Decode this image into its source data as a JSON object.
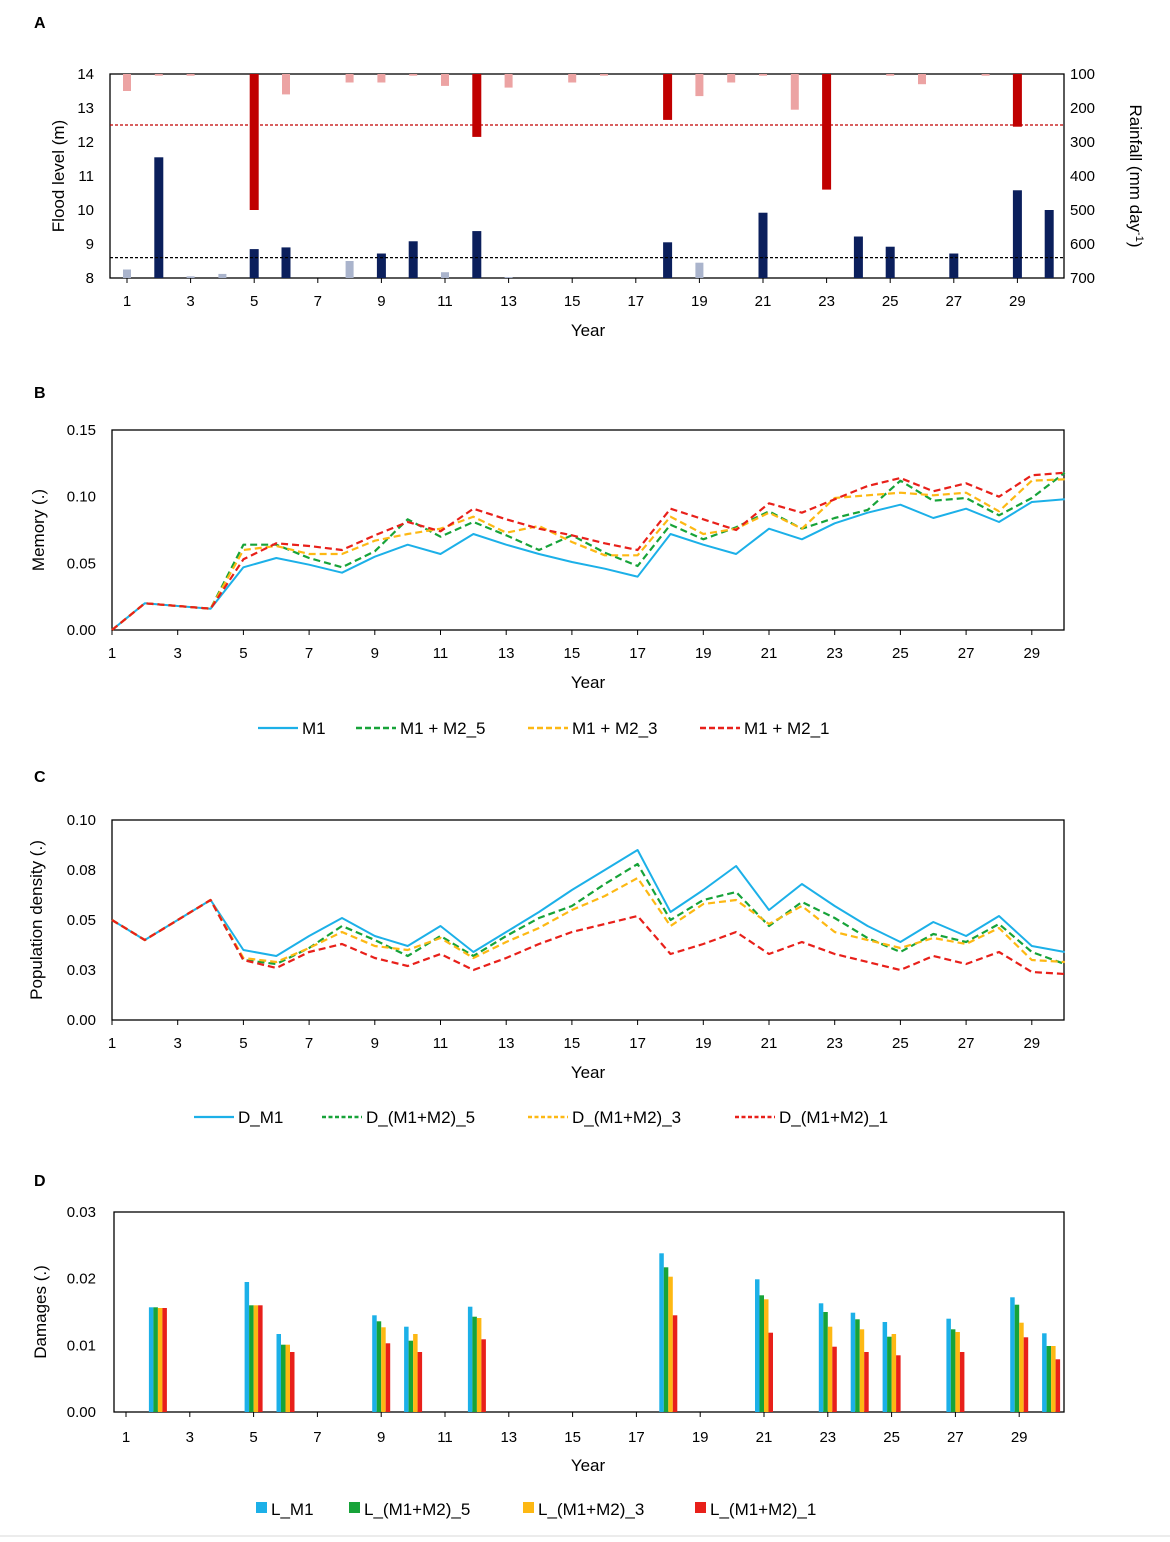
{
  "panels": [
    {
      "label": "A",
      "type": "bar-combo",
      "xlabel": "Year",
      "ylabel": "Flood level (m)",
      "y2label": "Rainfall (mm day",
      "y2label_sup": "-1",
      "y2label_tail": ")",
      "ylim": [
        8,
        14
      ],
      "yticks": [
        "8",
        "9",
        "10",
        "11",
        "12",
        "13",
        "14"
      ],
      "y2lim": [
        100,
        700
      ],
      "y2ticks": [
        "100",
        "200",
        "300",
        "400",
        "500",
        "600",
        "700"
      ],
      "xticks": [
        "1",
        "3",
        "5",
        "7",
        "9",
        "11",
        "13",
        "15",
        "17",
        "19",
        "21",
        "23",
        "25",
        "27",
        "29"
      ],
      "flood_threshold_m": 8.6,
      "rain_threshold_mm": 250,
      "colors": {
        "flood_major": "#0b1f5c",
        "flood_minor": "#aab4cc",
        "rain_major": "#c00000",
        "rain_minor": "#eca3a3",
        "threshold_flood": "#000000",
        "threshold_rain": "#c00000"
      }
    },
    {
      "label": "B",
      "type": "line",
      "xlabel": "Year",
      "ylabel": "Memory (.)",
      "ylim": [
        0,
        0.15
      ],
      "yticks": [
        "0.00",
        "0.05",
        "0.10",
        "0.15"
      ],
      "xticks": [
        "1",
        "3",
        "5",
        "7",
        "9",
        "11",
        "13",
        "15",
        "17",
        "19",
        "21",
        "23",
        "25",
        "27",
        "29"
      ],
      "legend": [
        "M1",
        "M1 + M2_5",
        "M1 + M2_3",
        "M1 + M2_1"
      ]
    },
    {
      "label": "C",
      "type": "line",
      "xlabel": "Year",
      "ylabel": "Population density (.)",
      "ylim": [
        0,
        0.1
      ],
      "yticks": [
        "0.00",
        "0.03",
        "0.05",
        "0.08",
        "0.10"
      ],
      "xticks": [
        "1",
        "3",
        "5",
        "7",
        "9",
        "11",
        "13",
        "15",
        "17",
        "19",
        "21",
        "23",
        "25",
        "27",
        "29"
      ],
      "legend": [
        "D_M1",
        "D_(M1+M2)_5",
        "D_(M1+M2)_3",
        "D_(M1+M2)_1"
      ]
    },
    {
      "label": "D",
      "type": "bar",
      "xlabel": "Year",
      "ylabel": "Damages (.)",
      "ylim": [
        0,
        0.03
      ],
      "yticks": [
        "0.00",
        "0.01",
        "0.02",
        "0.03"
      ],
      "xticks": [
        "1",
        "3",
        "5",
        "7",
        "9",
        "11",
        "13",
        "15",
        "17",
        "19",
        "21",
        "23",
        "25",
        "27",
        "29"
      ],
      "legend": [
        "L_M1",
        "L_(M1+M2)_5",
        "L_(M1+M2)_3",
        "L_(M1+M2)_1"
      ]
    }
  ],
  "chart_data": [
    {
      "type": "bar",
      "title": "A",
      "xlabel": "Year",
      "ylabel": "Flood level (m)",
      "y2label": "Rainfall (mm day-1)",
      "ylim": [
        8,
        14
      ],
      "y2lim": [
        100,
        700
      ],
      "x": [
        1,
        2,
        3,
        4,
        5,
        6,
        7,
        8,
        9,
        10,
        11,
        12,
        13,
        14,
        15,
        16,
        17,
        18,
        19,
        20,
        21,
        22,
        23,
        24,
        25,
        26,
        27,
        28,
        29,
        30
      ],
      "series": [
        {
          "name": "Flood level (m)",
          "axis": "left",
          "values": [
            8.25,
            11.55,
            8.05,
            8.12,
            8.85,
            8.9,
            null,
            8.5,
            8.72,
            9.08,
            8.17,
            9.38,
            8.03,
            null,
            null,
            null,
            null,
            9.05,
            8.45,
            null,
            9.92,
            null,
            null,
            9.22,
            8.92,
            null,
            8.72,
            null,
            10.58,
            10.0
          ],
          "major": [
            false,
            true,
            false,
            false,
            true,
            true,
            false,
            false,
            true,
            true,
            false,
            true,
            false,
            false,
            false,
            false,
            false,
            true,
            false,
            false,
            true,
            false,
            false,
            true,
            true,
            false,
            true,
            false,
            true,
            true
          ]
        },
        {
          "name": "Rainfall (mm day-1)",
          "axis": "right",
          "values": [
            150,
            105,
            105,
            null,
            500,
            160,
            null,
            125,
            125,
            105,
            135,
            285,
            140,
            null,
            125,
            105,
            null,
            235,
            165,
            125,
            105,
            205,
            440,
            null,
            105,
            130,
            null,
            105,
            255,
            null
          ],
          "major": [
            false,
            false,
            false,
            false,
            true,
            false,
            false,
            false,
            false,
            false,
            false,
            true,
            false,
            false,
            false,
            false,
            false,
            true,
            false,
            false,
            false,
            false,
            true,
            false,
            false,
            false,
            false,
            false,
            true,
            false
          ]
        }
      ],
      "thresholds": {
        "flood_level_m": 8.6,
        "rainfall_mm": 250
      }
    },
    {
      "type": "line",
      "title": "B",
      "xlabel": "Year",
      "ylabel": "Memory (.)",
      "ylim": [
        0,
        0.15
      ],
      "x": [
        1,
        2,
        3,
        4,
        5,
        6,
        7,
        8,
        9,
        10,
        11,
        12,
        13,
        14,
        15,
        16,
        17,
        18,
        19,
        20,
        21,
        22,
        23,
        24,
        25,
        26,
        27,
        28,
        29,
        30
      ],
      "series": [
        {
          "name": "M1",
          "values": [
            0,
            0.02,
            0.018,
            0.016,
            0.047,
            0.054,
            0.049,
            0.043,
            0.055,
            0.064,
            0.057,
            0.072,
            0.064,
            0.057,
            0.051,
            0.046,
            0.04,
            0.072,
            0.064,
            0.057,
            0.076,
            0.068,
            0.08,
            0.088,
            0.094,
            0.084,
            0.091,
            0.081,
            0.096,
            0.098
          ]
        },
        {
          "name": "M1 + M2_5",
          "values": [
            0,
            0.02,
            0.018,
            0.016,
            0.064,
            0.064,
            0.054,
            0.047,
            0.059,
            0.083,
            0.07,
            0.081,
            0.071,
            0.06,
            0.071,
            0.058,
            0.048,
            0.079,
            0.068,
            0.077,
            0.089,
            0.076,
            0.084,
            0.09,
            0.112,
            0.097,
            0.099,
            0.086,
            0.099,
            0.118
          ]
        },
        {
          "name": "M1 + M2_3",
          "values": [
            0,
            0.02,
            0.018,
            0.016,
            0.06,
            0.063,
            0.057,
            0.057,
            0.067,
            0.072,
            0.076,
            0.085,
            0.073,
            0.078,
            0.066,
            0.056,
            0.056,
            0.085,
            0.072,
            0.076,
            0.088,
            0.076,
            0.099,
            0.101,
            0.103,
            0.101,
            0.103,
            0.089,
            0.112,
            0.113
          ]
        },
        {
          "name": "M1 + M2_1",
          "values": [
            0,
            0.02,
            0.018,
            0.016,
            0.053,
            0.065,
            0.063,
            0.06,
            0.071,
            0.081,
            0.074,
            0.091,
            0.083,
            0.076,
            0.071,
            0.065,
            0.06,
            0.091,
            0.083,
            0.075,
            0.095,
            0.088,
            0.098,
            0.108,
            0.114,
            0.104,
            0.11,
            0.1,
            0.116,
            0.118
          ]
        }
      ]
    },
    {
      "type": "line",
      "title": "C",
      "xlabel": "Year",
      "ylabel": "Population density (.)",
      "ylim": [
        0,
        0.1
      ],
      "x": [
        1,
        2,
        3,
        4,
        5,
        6,
        7,
        8,
        9,
        10,
        11,
        12,
        13,
        14,
        15,
        16,
        17,
        18,
        19,
        20,
        21,
        22,
        23,
        24,
        25,
        26,
        27,
        28,
        29,
        30
      ],
      "series": [
        {
          "name": "D_M1",
          "values": [
            0.05,
            0.04,
            0.05,
            0.06,
            0.035,
            0.032,
            0.042,
            0.051,
            0.042,
            0.037,
            0.047,
            0.034,
            0.044,
            0.054,
            0.065,
            0.075,
            0.085,
            0.054,
            0.065,
            0.077,
            0.055,
            0.068,
            0.057,
            0.047,
            0.039,
            0.049,
            0.042,
            0.052,
            0.037,
            0.034
          ]
        },
        {
          "name": "D_(M1+M2)_5",
          "values": [
            0.05,
            0.04,
            0.05,
            0.06,
            0.03,
            0.028,
            0.036,
            0.047,
            0.04,
            0.032,
            0.042,
            0.032,
            0.042,
            0.051,
            0.057,
            0.068,
            0.078,
            0.05,
            0.06,
            0.064,
            0.047,
            0.059,
            0.051,
            0.041,
            0.034,
            0.043,
            0.039,
            0.048,
            0.034,
            0.028
          ]
        },
        {
          "name": "D_(M1+M2)_3",
          "values": [
            0.05,
            0.04,
            0.05,
            0.06,
            0.031,
            0.029,
            0.036,
            0.044,
            0.037,
            0.035,
            0.041,
            0.031,
            0.039,
            0.046,
            0.055,
            0.062,
            0.071,
            0.047,
            0.058,
            0.06,
            0.048,
            0.057,
            0.044,
            0.04,
            0.036,
            0.041,
            0.038,
            0.046,
            0.03,
            0.029
          ]
        },
        {
          "name": "D_(M1+M2)_1",
          "values": [
            0.05,
            0.04,
            0.05,
            0.06,
            0.03,
            0.026,
            0.034,
            0.038,
            0.031,
            0.027,
            0.033,
            0.025,
            0.031,
            0.038,
            0.044,
            0.048,
            0.052,
            0.033,
            0.038,
            0.044,
            0.033,
            0.039,
            0.033,
            0.029,
            0.025,
            0.032,
            0.028,
            0.034,
            0.024,
            0.023
          ]
        }
      ]
    },
    {
      "type": "bar",
      "title": "D",
      "xlabel": "Year",
      "ylabel": "Damages (.)",
      "ylim": [
        0,
        0.03
      ],
      "x": [
        2,
        5,
        6,
        9,
        10,
        12,
        18,
        21,
        23,
        24,
        25,
        27,
        29,
        30
      ],
      "series": [
        {
          "name": "L_M1",
          "values": [
            0.0157,
            0.0195,
            0.0117,
            0.0145,
            0.0128,
            0.0158,
            0.0238,
            0.0199,
            0.0163,
            0.0149,
            0.0135,
            0.014,
            0.0172,
            0.0118
          ]
        },
        {
          "name": "L_(M1+M2)_5",
          "values": [
            0.0157,
            0.016,
            0.0101,
            0.0136,
            0.0107,
            0.0143,
            0.0217,
            0.0175,
            0.015,
            0.0139,
            0.0113,
            0.0124,
            0.0161,
            0.0099
          ]
        },
        {
          "name": "L_(M1+M2)_3",
          "values": [
            0.0156,
            0.016,
            0.0101,
            0.0127,
            0.0117,
            0.0141,
            0.0203,
            0.0169,
            0.0128,
            0.0124,
            0.0117,
            0.012,
            0.0134,
            0.0099
          ]
        },
        {
          "name": "L_(M1+M2)_1",
          "values": [
            0.0156,
            0.016,
            0.009,
            0.0103,
            0.009,
            0.0109,
            0.0145,
            0.0119,
            0.0098,
            0.009,
            0.0085,
            0.009,
            0.0112,
            0.0079
          ]
        }
      ]
    }
  ],
  "colors": {
    "M1": "#1cb0e8",
    "M2_5": "#17a339",
    "M2_3": "#fdb813",
    "M2_1": "#e8201a",
    "axis": "#000000"
  }
}
